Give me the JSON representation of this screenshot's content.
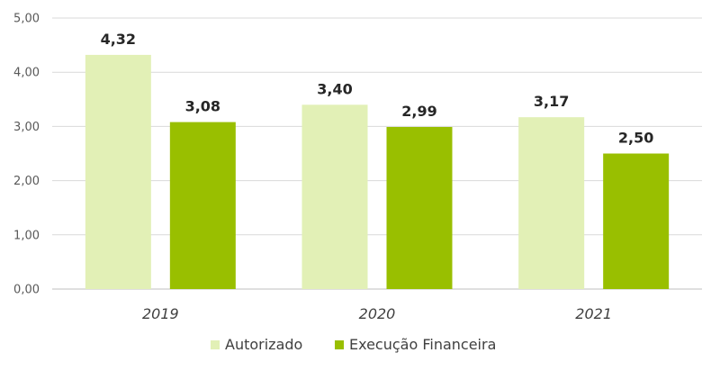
{
  "chart_data": {
    "type": "bar",
    "categories": [
      "2019",
      "2020",
      "2021"
    ],
    "series": [
      {
        "name": "Autorizado",
        "values": [
          4.32,
          3.4,
          3.17
        ],
        "labels": [
          "4,32",
          "3,40",
          "3,17"
        ],
        "color": "#e2f0b6"
      },
      {
        "name": "Execução Financeira",
        "values": [
          3.08,
          2.99,
          2.5
        ],
        "labels": [
          "3,08",
          "2,99",
          "2,50"
        ],
        "color": "#99bf00"
      }
    ],
    "yticks": [
      {
        "value": 0,
        "label": "0,00"
      },
      {
        "value": 1,
        "label": "1,00"
      },
      {
        "value": 2,
        "label": "2,00"
      },
      {
        "value": 3,
        "label": "3,00"
      },
      {
        "value": 4,
        "label": "4,00"
      },
      {
        "value": 5,
        "label": "5,00"
      }
    ],
    "ylim": [
      0,
      5
    ],
    "grid": true,
    "legend_position": "bottom"
  }
}
